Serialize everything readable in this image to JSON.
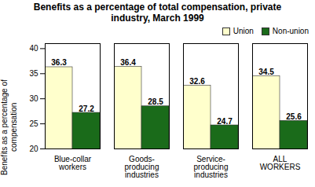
{
  "chart_data": {
    "type": "bar",
    "title": "Benefits as a percentage of total compensation, private\nindustry, March 1999",
    "categories": [
      "Blue-collar\nworkers",
      "Goods-\nproducing\nindustries",
      "Service-\nproducing\nindustries",
      "ALL\nWORKERS"
    ],
    "series": [
      {
        "name": "Union",
        "color": "#FFFFCC",
        "values": [
          36.3,
          36.4,
          32.6,
          34.5
        ]
      },
      {
        "name": "Non-union",
        "color": "#1a6b1a",
        "values": [
          27.2,
          28.5,
          24.7,
          25.6
        ]
      }
    ],
    "ylabel": "Benefits as a percentage of\ncompensation",
    "ylim": [
      20,
      41
    ],
    "yticks": [
      20,
      25,
      30,
      35,
      40
    ],
    "data_labels": true,
    "legend": "upper right",
    "grid": false
  }
}
